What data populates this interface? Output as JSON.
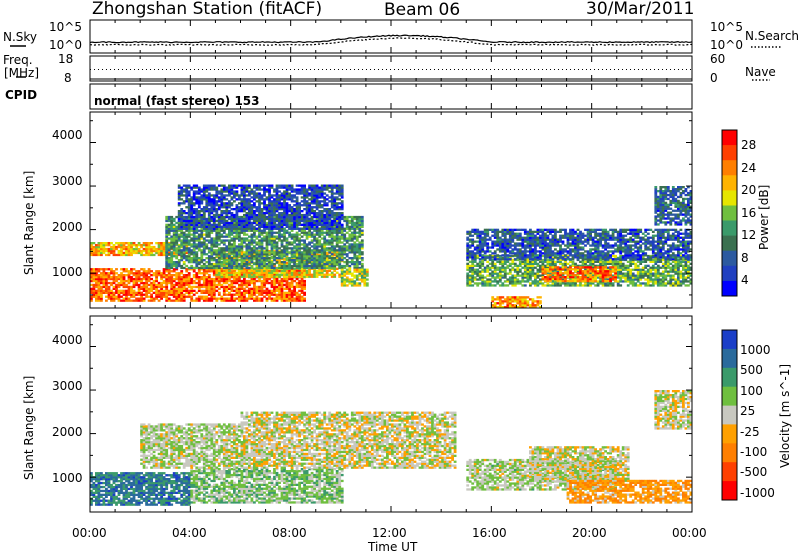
{
  "header": {
    "station": "Zhongshan Station (fitACF)",
    "beam": "Beam 06",
    "date": "30/Mar/2011"
  },
  "strips": {
    "nsky_label": "N.Sky",
    "nsky_ticks": [
      "10^5",
      "10^0"
    ],
    "nsearch_label": "N.Search",
    "nsearch_ticks": [
      "10^5",
      "10^0"
    ],
    "freq_label_1": "Freq.",
    "freq_label_2": "[MHz]",
    "freq_ticks": [
      "18",
      "8"
    ],
    "nave_label": "Nave",
    "nave_ticks": [
      "60",
      "0"
    ],
    "cpid_label": "CPID",
    "cpid_text": "normal (fast stereo) 153"
  },
  "panels": {
    "power": {
      "ylabel": "Slant Range [km]",
      "yticks": [
        "4000",
        "3000",
        "2000",
        "1000"
      ],
      "cbar_label": "Power [dB]",
      "cbar_ticks": [
        "28",
        "24",
        "20",
        "16",
        "12",
        "8",
        "4"
      ],
      "cbar_colors": [
        "#ff0000",
        "#ff4000",
        "#ff7f00",
        "#ffb300",
        "#e6e600",
        "#6fbf3f",
        "#3a9a6a",
        "#3a7050",
        "#2c5aa0",
        "#2040c0",
        "#0000ff"
      ]
    },
    "velocity": {
      "ylabel": "Slant Range [km]",
      "yticks": [
        "4000",
        "3000",
        "2000",
        "1000"
      ],
      "cbar_label": "Velocity [m s^-1]",
      "cbar_ticks": [
        "1000",
        "500",
        "100",
        "25",
        "-25",
        "-100",
        "-500",
        "-1000"
      ],
      "cbar_colors": [
        "#1a3ec8",
        "#2a6a9c",
        "#3a9a6a",
        "#6fbf3f",
        "#c8c8c0",
        "#ffa000",
        "#ff7f00",
        "#ff4000",
        "#ff0000"
      ]
    }
  },
  "xaxis": {
    "ticks": [
      "00:00",
      "04:00",
      "08:00",
      "12:00",
      "16:00",
      "20:00",
      "00:00"
    ],
    "label": "Time UT"
  },
  "chart_data": {
    "type": "heatmap",
    "title": "Zhongshan Station (fitACF)",
    "subtitle": "Beam 06",
    "date": "30/Mar/2011",
    "xlabel": "Time UT",
    "ylabel": "Slant Range [km]",
    "x_range_hours": [
      0,
      24
    ],
    "y_range_km": [
      200,
      4700
    ],
    "panels": [
      {
        "name": "Power",
        "cbar_label": "Power [dB]",
        "scale_range": [
          0,
          32
        ],
        "regions": [
          {
            "t0": 0.0,
            "t1": 8.5,
            "r0": 350,
            "r1": 1100,
            "level": 26
          },
          {
            "t0": 0.0,
            "t1": 4.0,
            "r0": 1400,
            "r1": 1700,
            "level": 22
          },
          {
            "t0": 5.0,
            "t1": 10.0,
            "r0": 900,
            "r1": 1500,
            "level": 20
          },
          {
            "t0": 3.0,
            "t1": 10.8,
            "r0": 1100,
            "r1": 2300,
            "level": 12
          },
          {
            "t0": 3.5,
            "t1": 10.0,
            "r0": 2000,
            "r1": 3000,
            "level": 6
          },
          {
            "t0": 10.0,
            "t1": 11.0,
            "r0": 700,
            "r1": 1100,
            "level": 18
          },
          {
            "t0": 15.0,
            "t1": 24.0,
            "r0": 700,
            "r1": 1400,
            "level": 14
          },
          {
            "t0": 18.0,
            "t1": 21.0,
            "r0": 800,
            "r1": 1150,
            "level": 25
          },
          {
            "t0": 15.0,
            "t1": 24.0,
            "r0": 1300,
            "r1": 2000,
            "level": 7
          },
          {
            "t0": 16.0,
            "t1": 18.0,
            "r0": 200,
            "r1": 450,
            "level": 24
          },
          {
            "t0": 22.5,
            "t1": 24.0,
            "r0": 2100,
            "r1": 3000,
            "level": 8
          }
        ]
      },
      {
        "name": "Velocity",
        "cbar_label": "Velocity [m s^-1]",
        "scale_range": [
          -1000,
          1000
        ],
        "regions": [
          {
            "t0": 0.0,
            "t1": 4.0,
            "r0": 350,
            "r1": 1100,
            "level": 600
          },
          {
            "t0": 4.0,
            "t1": 10.0,
            "r0": 400,
            "r1": 1200,
            "level": 200
          },
          {
            "t0": 6.0,
            "t1": 14.5,
            "r0": 1200,
            "r1": 2500,
            "level": 0
          },
          {
            "t0": 2.0,
            "t1": 6.0,
            "r0": 1200,
            "r1": 2200,
            "level": 80
          },
          {
            "t0": 15.0,
            "t1": 21.0,
            "r0": 700,
            "r1": 1400,
            "level": 100
          },
          {
            "t0": 17.5,
            "t1": 21.5,
            "r0": 900,
            "r1": 1700,
            "level": 0
          },
          {
            "t0": 19.0,
            "t1": 24.0,
            "r0": 400,
            "r1": 900,
            "level": -300
          },
          {
            "t0": 22.5,
            "t1": 24.0,
            "r0": 2100,
            "r1": 3000,
            "level": 0
          }
        ]
      }
    ],
    "nsky_nsearch": {
      "y_range": [
        0,
        5
      ],
      "base_level": 1.4,
      "bump_peak": 2.4,
      "bump_hours": [
        9,
        16
      ]
    },
    "freq_mhz": {
      "y_range": [
        8,
        18
      ],
      "value": 12.6
    },
    "nave": {
      "y_range": [
        0,
        60
      ]
    }
  }
}
